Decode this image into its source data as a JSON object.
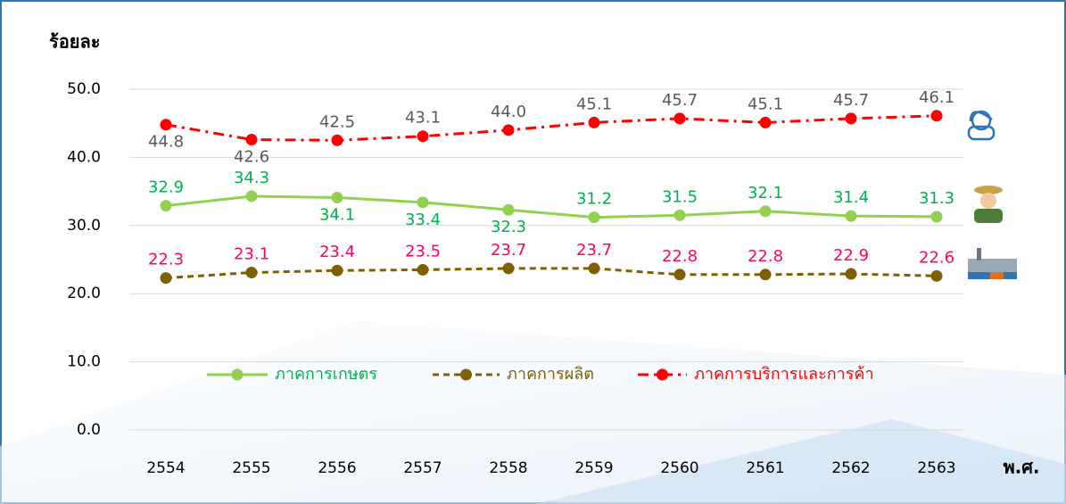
{
  "chart_data": {
    "type": "line",
    "y_label": "ร้อยละ",
    "x_label": "พ.ศ.",
    "categories": [
      "2554",
      "2555",
      "2556",
      "2557",
      "2558",
      "2559",
      "2560",
      "2561",
      "2562",
      "2563"
    ],
    "ylim": [
      0,
      50
    ],
    "yticks": [
      {
        "value": 0,
        "label": "0.0"
      },
      {
        "value": 10,
        "label": "10.0"
      },
      {
        "value": 20,
        "label": "20.0"
      },
      {
        "value": 30,
        "label": "30.0"
      },
      {
        "value": 40,
        "label": "40.0"
      },
      {
        "value": 50,
        "label": "50.0"
      }
    ],
    "grid": true,
    "series": [
      {
        "name": "ภาคการเกษตร",
        "color": "#92d050",
        "label_color": "#00b050",
        "line_style": "solid",
        "values": [
          32.9,
          34.3,
          34.1,
          33.4,
          32.3,
          31.2,
          31.5,
          32.1,
          31.4,
          31.3
        ],
        "value_labels": [
          "32.9",
          "34.3",
          "34.1",
          "33.4",
          "32.3",
          "31.2",
          "31.5",
          "32.1",
          "31.4",
          "31.3"
        ]
      },
      {
        "name": "ภาคการผลิต",
        "color": "#7f6000",
        "label_color": "#ff0066",
        "line_style": "dashed",
        "values": [
          22.3,
          23.1,
          23.4,
          23.5,
          23.7,
          23.7,
          22.8,
          22.8,
          22.9,
          22.6
        ],
        "value_labels": [
          "22.3",
          "23.1",
          "23.4",
          "23.5",
          "23.7",
          "23.7",
          "22.8",
          "22.8",
          "22.9",
          "22.6"
        ]
      },
      {
        "name": "ภาคการบริการและการค้า",
        "color": "#ff0000",
        "label_color": "#595959",
        "line_style": "dashdot",
        "values": [
          44.8,
          42.6,
          42.5,
          43.1,
          44.0,
          45.1,
          45.7,
          45.1,
          45.7,
          46.1
        ],
        "value_labels": [
          "44.8",
          "42.6",
          "42.5",
          "43.1",
          "44.0",
          "45.1",
          "45.7",
          "45.1",
          "45.7",
          "46.1"
        ]
      }
    ]
  }
}
